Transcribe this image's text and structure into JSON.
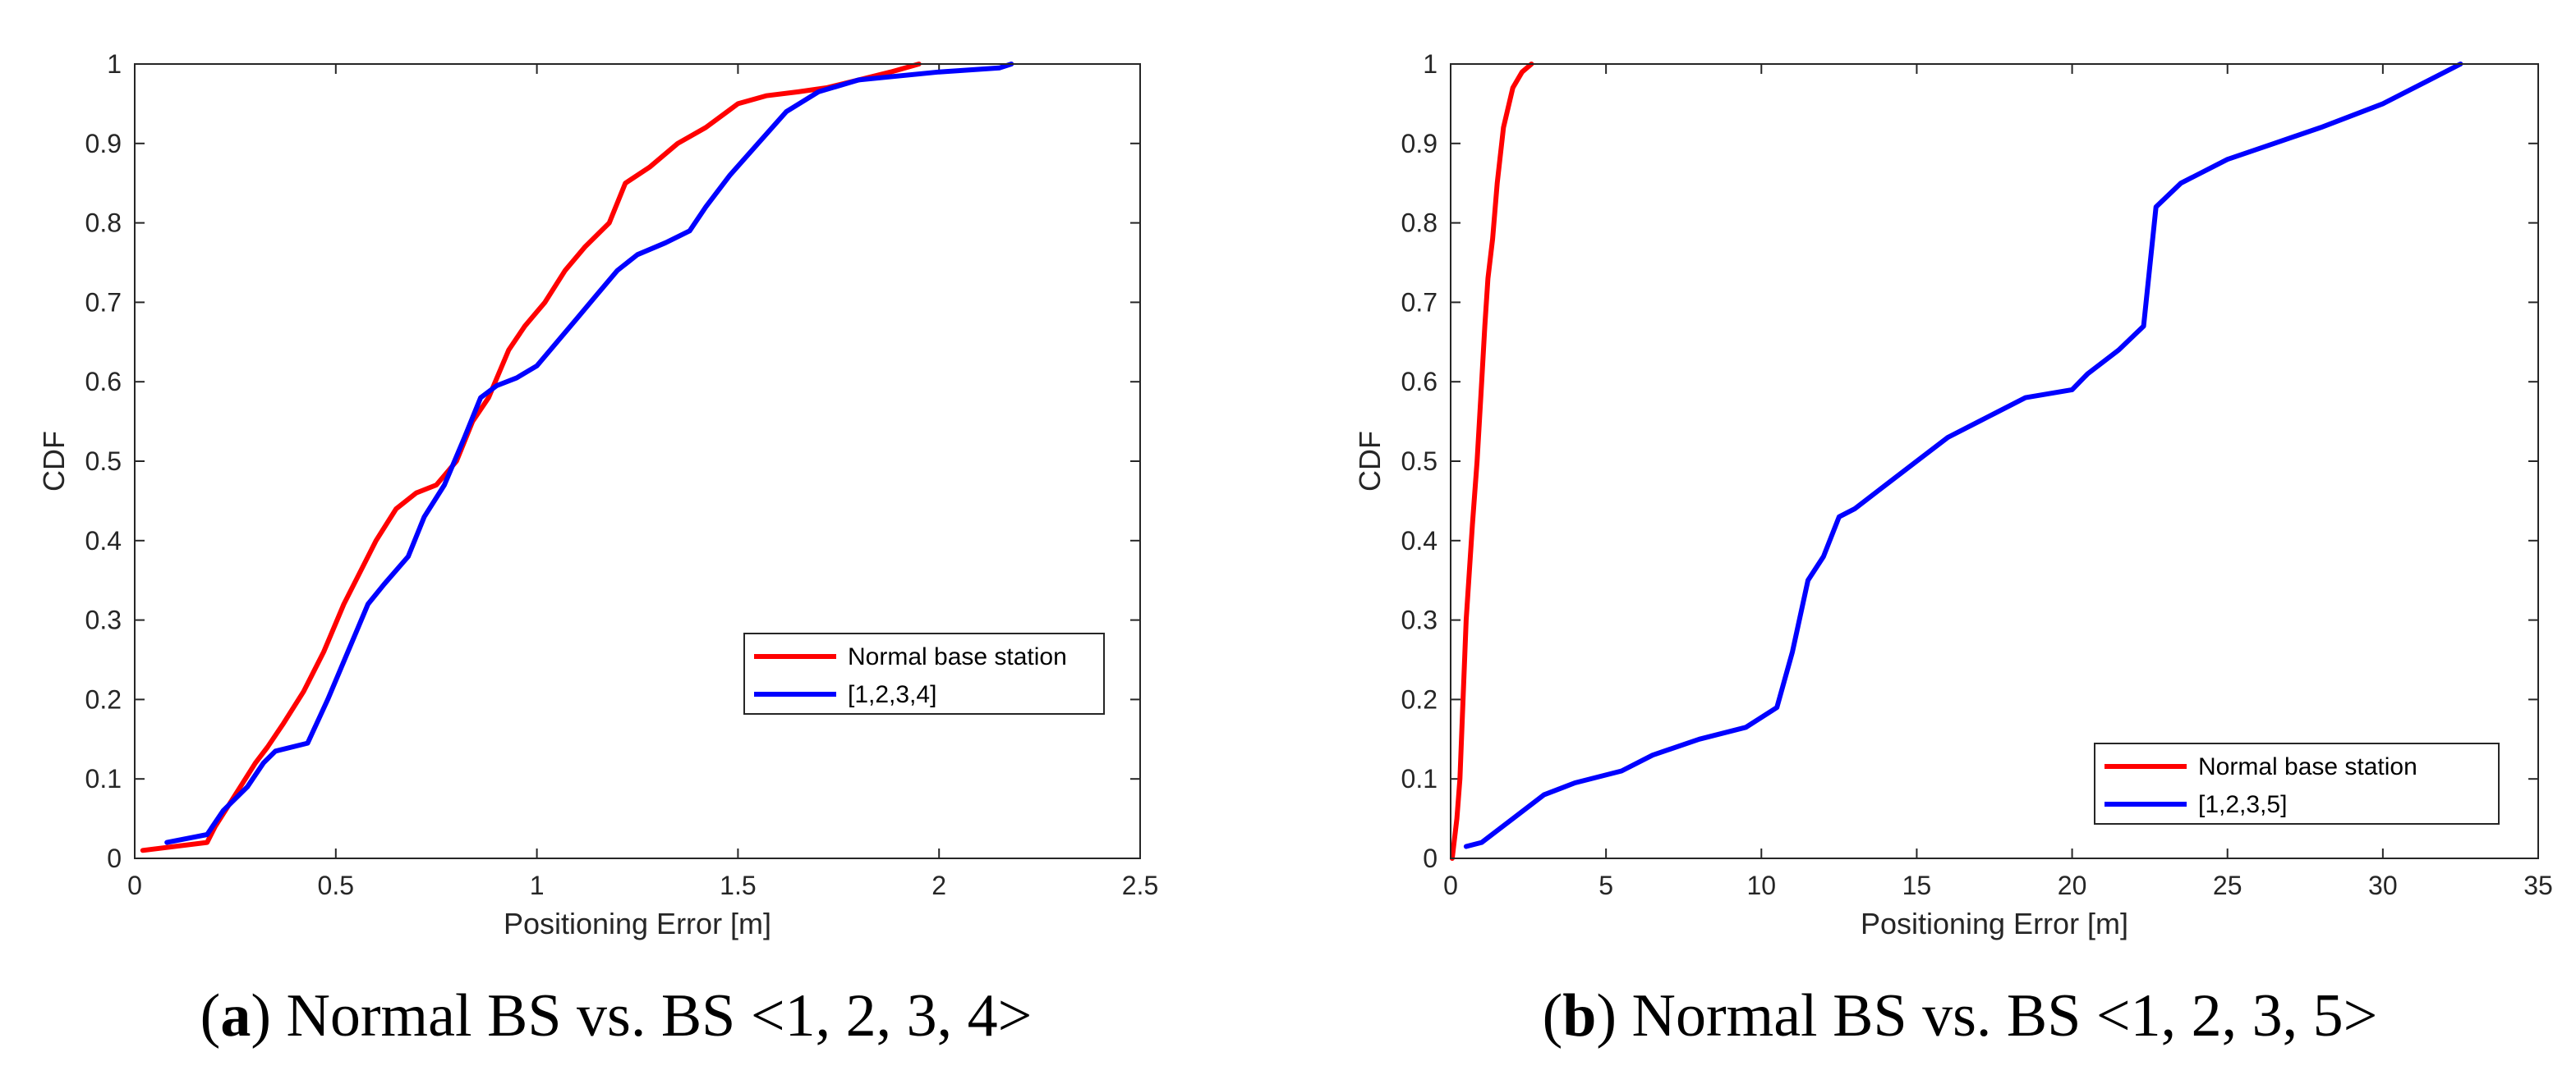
{
  "chart_data": [
    {
      "type": "line",
      "caption": {
        "open": "(",
        "letter": "a",
        "rest": ") Normal BS vs. BS <1, 2, 3, 4>"
      },
      "xlabel": "Positioning Error [m]",
      "ylabel": "CDF",
      "xlim": [
        0,
        2.5
      ],
      "ylim": [
        0,
        1
      ],
      "xticks": [
        0,
        0.5,
        1,
        1.5,
        2,
        2.5
      ],
      "xtick_labels": [
        "0",
        "0.5",
        "1",
        "1.5",
        "2",
        "2.5"
      ],
      "yticks": [
        0,
        0.1,
        0.2,
        0.3,
        0.4,
        0.5,
        0.6,
        0.7,
        0.8,
        0.9,
        1
      ],
      "ytick_labels": [
        "0",
        "0.1",
        "0.2",
        "0.3",
        "0.4",
        "0.5",
        "0.6",
        "0.7",
        "0.8",
        "0.9",
        "1"
      ],
      "legend_position": "lower-right",
      "series": [
        {
          "name": "Normal base station",
          "color": "#ff0000",
          "x": [
            0.02,
            0.18,
            0.2,
            0.25,
            0.3,
            0.33,
            0.37,
            0.42,
            0.47,
            0.52,
            0.55,
            0.6,
            0.65,
            0.7,
            0.75,
            0.8,
            0.84,
            0.88,
            0.93,
            0.97,
            1.02,
            1.07,
            1.12,
            1.18,
            1.22,
            1.28,
            1.35,
            1.42,
            1.5,
            1.57,
            1.65,
            1.72,
            1.8,
            1.88,
            1.95
          ],
          "y": [
            0.01,
            0.02,
            0.04,
            0.08,
            0.12,
            0.14,
            0.17,
            0.21,
            0.26,
            0.32,
            0.35,
            0.4,
            0.44,
            0.46,
            0.47,
            0.5,
            0.55,
            0.58,
            0.64,
            0.67,
            0.7,
            0.74,
            0.77,
            0.8,
            0.85,
            0.87,
            0.9,
            0.92,
            0.95,
            0.96,
            0.965,
            0.97,
            0.98,
            0.99,
            1.0
          ]
        },
        {
          "name": "[1,2,3,4]",
          "color": "#0000ff",
          "x": [
            0.08,
            0.18,
            0.22,
            0.28,
            0.32,
            0.35,
            0.43,
            0.48,
            0.53,
            0.58,
            0.62,
            0.68,
            0.72,
            0.77,
            0.82,
            0.86,
            0.9,
            0.95,
            1.0,
            1.05,
            1.1,
            1.15,
            1.2,
            1.25,
            1.32,
            1.38,
            1.42,
            1.48,
            1.55,
            1.62,
            1.7,
            1.8,
            2.0,
            2.15,
            2.18
          ],
          "y": [
            0.02,
            0.03,
            0.06,
            0.09,
            0.12,
            0.135,
            0.145,
            0.2,
            0.26,
            0.32,
            0.345,
            0.38,
            0.43,
            0.47,
            0.53,
            0.58,
            0.595,
            0.605,
            0.62,
            0.65,
            0.68,
            0.71,
            0.74,
            0.76,
            0.775,
            0.79,
            0.82,
            0.86,
            0.9,
            0.94,
            0.965,
            0.98,
            0.99,
            0.995,
            1.0
          ]
        }
      ]
    },
    {
      "type": "line",
      "caption": {
        "open": "(",
        "letter": "b",
        "rest": ") Normal BS vs. BS <1, 2, 3, 5>"
      },
      "xlabel": "Positioning Error [m]",
      "ylabel": "CDF",
      "xlim": [
        0,
        35
      ],
      "ylim": [
        0,
        1
      ],
      "xticks": [
        0,
        5,
        10,
        15,
        20,
        25,
        30,
        35
      ],
      "xtick_labels": [
        "0",
        "5",
        "10",
        "15",
        "20",
        "25",
        "30",
        "35"
      ],
      "yticks": [
        0,
        0.1,
        0.2,
        0.3,
        0.4,
        0.5,
        0.6,
        0.7,
        0.8,
        0.9,
        1
      ],
      "ytick_labels": [
        "0",
        "0.1",
        "0.2",
        "0.3",
        "0.4",
        "0.5",
        "0.6",
        "0.7",
        "0.8",
        "0.9",
        "1"
      ],
      "legend_position": "lower-right",
      "series": [
        {
          "name": "Normal base station",
          "color": "#ff0000",
          "x": [
            0.05,
            0.2,
            0.3,
            0.4,
            0.5,
            0.6,
            0.7,
            0.85,
            1.0,
            1.1,
            1.2,
            1.35,
            1.5,
            1.7,
            2.0,
            2.3,
            2.6
          ],
          "y": [
            0.0,
            0.05,
            0.1,
            0.2,
            0.3,
            0.36,
            0.42,
            0.5,
            0.6,
            0.67,
            0.73,
            0.78,
            0.85,
            0.92,
            0.97,
            0.99,
            1.0
          ]
        },
        {
          "name": "[1,2,3,5]",
          "color": "#0000ff",
          "x": [
            0.5,
            1.0,
            2.0,
            3.0,
            4.0,
            5.5,
            6.5,
            8.0,
            9.5,
            10.5,
            11.0,
            11.5,
            12.0,
            12.5,
            13.0,
            14.0,
            15.0,
            16.0,
            17.5,
            18.5,
            20.0,
            20.5,
            21.5,
            22.3,
            22.7,
            23.5,
            25.0,
            26.5,
            28.0,
            30.0,
            31.5,
            32.5
          ],
          "y": [
            0.015,
            0.02,
            0.05,
            0.08,
            0.095,
            0.11,
            0.13,
            0.15,
            0.165,
            0.19,
            0.26,
            0.35,
            0.38,
            0.43,
            0.44,
            0.47,
            0.5,
            0.53,
            0.56,
            0.58,
            0.59,
            0.61,
            0.64,
            0.67,
            0.82,
            0.85,
            0.88,
            0.9,
            0.92,
            0.95,
            0.98,
            1.0
          ]
        }
      ]
    }
  ]
}
